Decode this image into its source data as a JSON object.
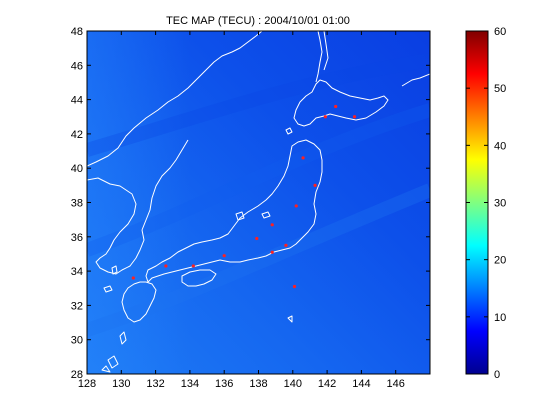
{
  "title": "TEC MAP (TECU) : 2004/10/01 01:00",
  "map": {
    "x_ticks": [
      "128",
      "130",
      "132",
      "134",
      "136",
      "138",
      "140",
      "142",
      "144",
      "146"
    ],
    "x_tick_values": [
      128,
      130,
      132,
      134,
      136,
      138,
      140,
      142,
      144,
      146
    ],
    "y_ticks": [
      "48",
      "46",
      "44",
      "42",
      "40",
      "38",
      "36",
      "34",
      "32",
      "30",
      "28"
    ],
    "y_tick_values": [
      48,
      46,
      44,
      42,
      40,
      38,
      36,
      34,
      32,
      30,
      28
    ],
    "lon_range": [
      128,
      148
    ],
    "lat_range": [
      28,
      48
    ],
    "coastline_color": "#ffffff",
    "station_color": "#ff2020",
    "stations": [
      {
        "lon": 142.5,
        "lat": 43.6
      },
      {
        "lon": 143.6,
        "lat": 43.0
      },
      {
        "lon": 141.9,
        "lat": 43.0
      },
      {
        "lon": 140.6,
        "lat": 40.6
      },
      {
        "lon": 141.3,
        "lat": 39.0
      },
      {
        "lon": 140.2,
        "lat": 37.8
      },
      {
        "lon": 138.8,
        "lat": 36.7
      },
      {
        "lon": 137.9,
        "lat": 35.9
      },
      {
        "lon": 139.6,
        "lat": 35.5
      },
      {
        "lon": 138.8,
        "lat": 35.1
      },
      {
        "lon": 140.1,
        "lat": 33.1
      },
      {
        "lon": 136.0,
        "lat": 34.9
      },
      {
        "lon": 134.2,
        "lat": 34.3
      },
      {
        "lon": 132.6,
        "lat": 34.3
      },
      {
        "lon": 130.7,
        "lat": 33.6
      }
    ]
  },
  "colorbar": {
    "ticks": [
      "60",
      "50",
      "40",
      "30",
      "20",
      "10",
      "0"
    ],
    "tick_values": [
      60,
      50,
      40,
      30,
      20,
      10,
      0
    ],
    "range": [
      0,
      60
    ],
    "colormap": "jet"
  }
}
